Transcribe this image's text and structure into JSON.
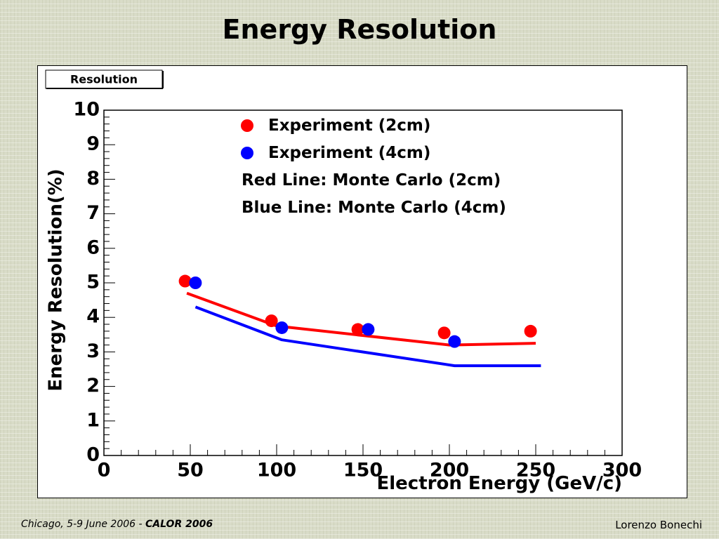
{
  "slide": {
    "title": "Energy Resolution",
    "footer_location": "Chicago, 5-9 June 2006",
    "footer_separator": " - ",
    "footer_conference": "CALOR 2006",
    "footer_author": "Lorenzo Bonechi"
  },
  "chart_data": {
    "type": "scatter",
    "title": "Resolution",
    "xlabel": "Electron Energy (GeV/c)",
    "ylabel": "Energy Resolution(%)",
    "xlim": [
      0,
      300
    ],
    "ylim": [
      0,
      10
    ],
    "xticks": [
      0,
      50,
      100,
      150,
      200,
      250,
      300
    ],
    "yticks": [
      0,
      1,
      2,
      3,
      4,
      5,
      6,
      7,
      8,
      9,
      10
    ],
    "grid": false,
    "legend_position": "top-right",
    "colors": {
      "red": "#ff0000",
      "blue": "#0000ff"
    },
    "series": [
      {
        "name": "Experiment (2cm)",
        "kind": "points",
        "color": "#ff0000",
        "x": [
          47,
          97,
          147,
          197,
          247
        ],
        "y": [
          5.05,
          3.9,
          3.65,
          3.55,
          3.6
        ]
      },
      {
        "name": "Experiment (4cm)",
        "kind": "points",
        "color": "#0000ff",
        "x": [
          53,
          103,
          153,
          203
        ],
        "y": [
          5.0,
          3.7,
          3.65,
          3.3
        ]
      },
      {
        "name": "Monte Carlo (2cm)",
        "kind": "line",
        "color": "#ff0000",
        "x": [
          48,
          100,
          200,
          250
        ],
        "y": [
          4.7,
          3.75,
          3.2,
          3.25
        ]
      },
      {
        "name": "Monte Carlo (4cm)",
        "kind": "line",
        "color": "#0000ff",
        "x": [
          53,
          103,
          203,
          253
        ],
        "y": [
          4.3,
          3.35,
          2.6,
          2.6
        ]
      }
    ],
    "legend_text": [
      "Red Line: Monte Carlo (2cm)",
      "Blue Line: Monte Carlo (4cm)"
    ]
  }
}
